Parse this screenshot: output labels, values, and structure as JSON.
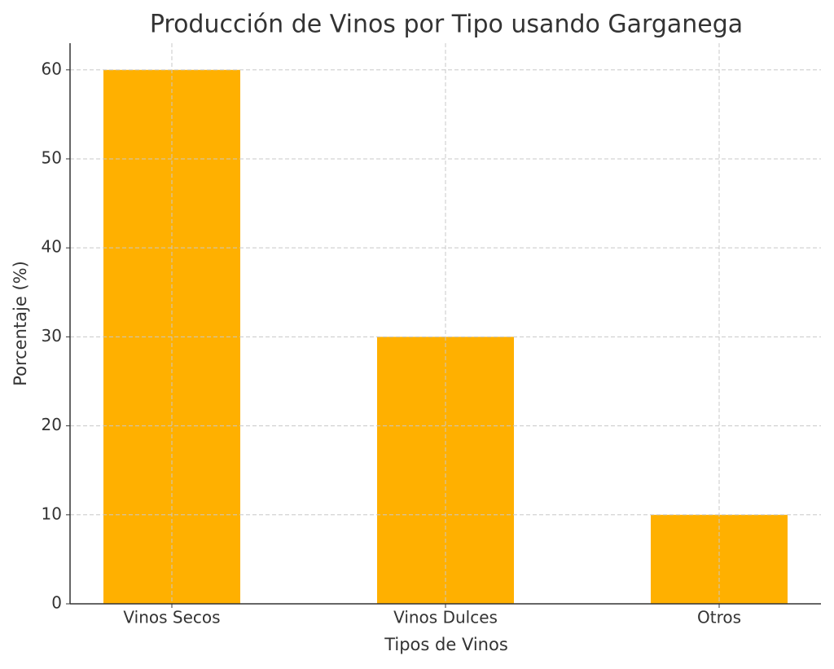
{
  "chart_data": {
    "type": "bar",
    "title": "Producción de Vinos por Tipo usando Garganega",
    "x_label": "Tipos de Vinos",
    "y_label": "Porcentaje (%)",
    "categories": [
      "Vinos Secos",
      "Vinos Dulces",
      "Otros"
    ],
    "values": [
      60,
      30,
      10
    ],
    "color": "#ffb000",
    "ylim": [
      0,
      63
    ],
    "yticks": [
      0,
      10,
      20,
      30,
      40,
      50,
      60
    ],
    "grid": true
  }
}
